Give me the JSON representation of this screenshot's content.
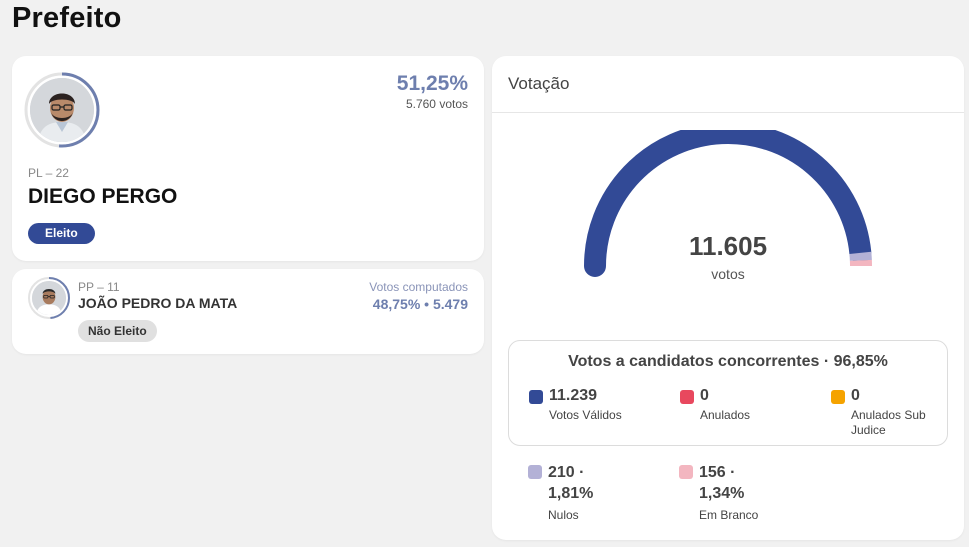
{
  "page": {
    "title": "Prefeito"
  },
  "winner": {
    "percent": "51,25%",
    "votes": "5.760 votos",
    "party": "PL – 22",
    "name": "DIEGO PERGO",
    "status": "Eleito",
    "ring_fraction": 0.5125
  },
  "runner_up": {
    "party": "PP – 11",
    "name": "JOÃO PEDRO DA MATA",
    "status": "Não Eleito",
    "computed_label": "Votos computados",
    "computed_value": "48,75% • 5.479",
    "ring_fraction": 0.4875
  },
  "votacao": {
    "title": "Votação",
    "total": "11.605",
    "total_unit": "votos",
    "gauge_fractions": {
      "validos": 0.9685,
      "nulos": 0.0181,
      "brancos": 0.0134
    },
    "concorrentes": {
      "title": "Votos a candidatos concorrentes · 96,85%",
      "items": [
        {
          "value": "11.239",
          "label": "Votos Válidos",
          "color": "#324a96"
        },
        {
          "value": "0",
          "label": "Anulados",
          "color": "#e8485e"
        },
        {
          "value": "0",
          "label": "Anulados Sub Judice",
          "color": "#f5a300"
        }
      ]
    },
    "outros": [
      {
        "value": "210 · 1,81%",
        "label": "Nulos",
        "color": "#b3b1d6"
      },
      {
        "value": "156 · 1,34%",
        "label": "Em Branco",
        "color": "#f3b6c0"
      }
    ]
  },
  "colors": {
    "primary": "#324a96",
    "accent": "#6e7fae",
    "nulos": "#b3b1d6",
    "brancos": "#f3b6c0"
  }
}
